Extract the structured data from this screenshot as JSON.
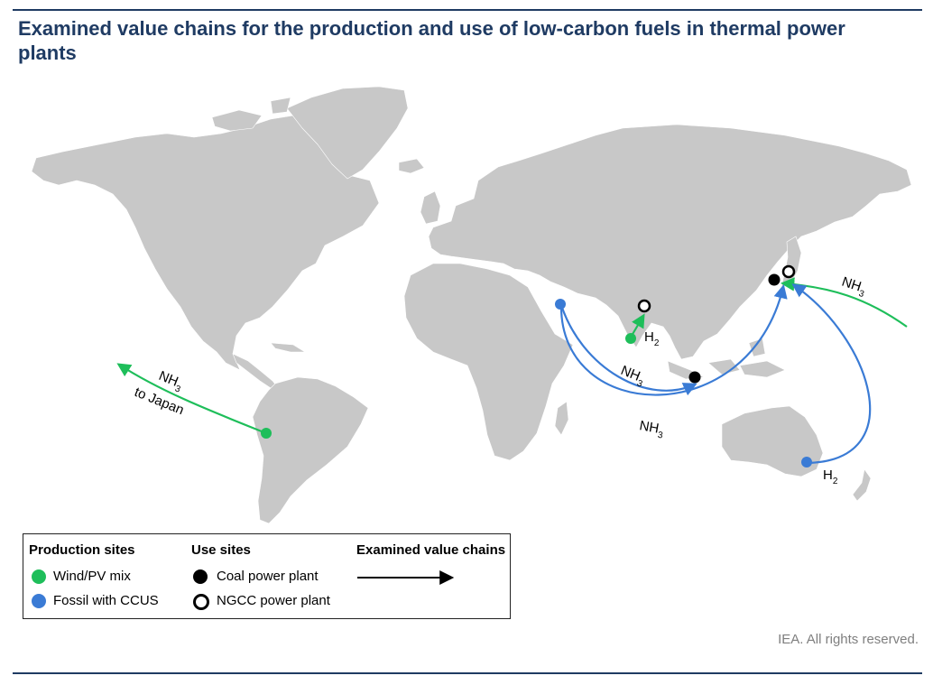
{
  "title": "Examined value chains for the production and use of low-carbon fuels in thermal power plants",
  "colors": {
    "title": "#1f3b63",
    "land": "#c8c8c8",
    "wind_pv": "#1ebe5a",
    "fossil_ccus": "#3a7bd5",
    "coal": "#000000"
  },
  "labels": {
    "nh3": "NH",
    "sub3": "3",
    "h2": "H",
    "sub2": "2",
    "to_japan": "to Japan"
  },
  "legend": {
    "production_heading": "Production sites",
    "use_heading": "Use sites",
    "chains_heading": "Examined value chains",
    "wind_pv": "Wind/PV mix",
    "fossil_ccus": "Fossil with CCUS",
    "coal": "Coal power plant",
    "ngcc": "NGCC power plant"
  },
  "credit": "IEA. All rights reserved."
}
